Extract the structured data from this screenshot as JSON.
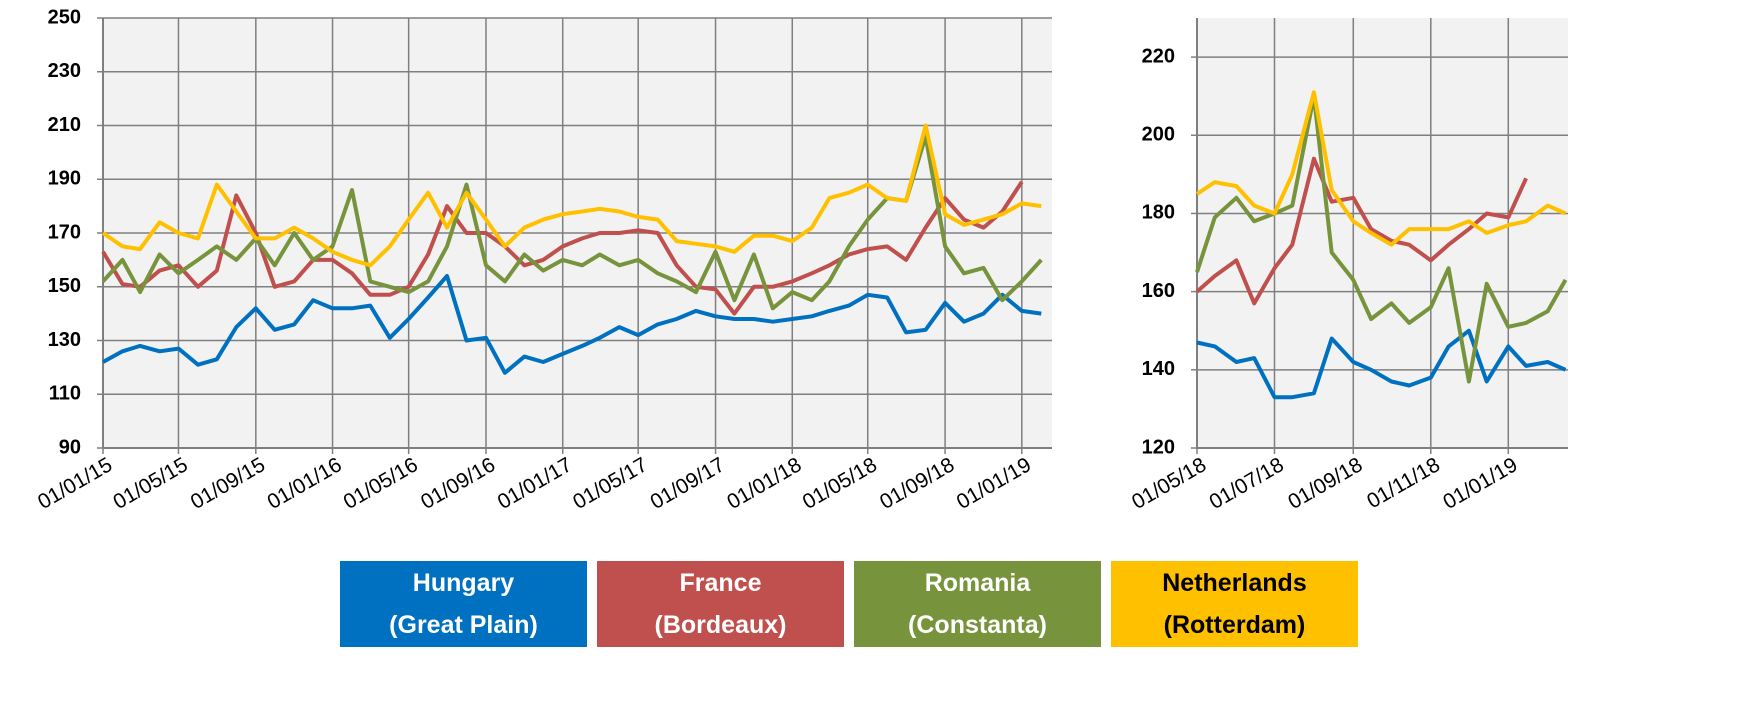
{
  "chart_data": [
    {
      "type": "line",
      "x": [
        "2015-01-01",
        "2015-02-01",
        "2015-03-01",
        "2015-04-01",
        "2015-05-01",
        "2015-06-01",
        "2015-07-01",
        "2015-08-01",
        "2015-09-01",
        "2015-10-01",
        "2015-11-01",
        "2015-12-01",
        "2016-01-01",
        "2016-02-01",
        "2016-03-01",
        "2016-04-01",
        "2016-05-01",
        "2016-06-01",
        "2016-07-01",
        "2016-08-01",
        "2016-09-01",
        "2016-10-01",
        "2016-11-01",
        "2016-12-01",
        "2017-01-01",
        "2017-02-01",
        "2017-03-01",
        "2017-04-01",
        "2017-05-01",
        "2017-06-01",
        "2017-07-01",
        "2017-08-01",
        "2017-09-01",
        "2017-10-01",
        "2017-11-01",
        "2017-12-01",
        "2018-01-01",
        "2018-02-01",
        "2018-03-01",
        "2018-04-01",
        "2018-05-01",
        "2018-06-01",
        "2018-07-01",
        "2018-08-01",
        "2018-09-01",
        "2018-10-01",
        "2018-11-01",
        "2018-12-01",
        "2019-01-01",
        "2019-02-01"
      ],
      "series": [
        {
          "name": "Hungary (Great Plain)",
          "color": "#0070c0",
          "values": [
            122,
            126,
            128,
            126,
            127,
            121,
            123,
            135,
            142,
            134,
            136,
            145,
            142,
            142,
            143,
            131,
            138,
            146,
            154,
            130,
            131,
            118,
            124,
            122,
            125,
            128,
            131,
            135,
            132,
            136,
            138,
            141,
            139,
            138,
            138,
            137,
            138,
            139,
            141,
            143,
            147,
            146,
            133,
            134,
            144,
            137,
            140,
            147,
            141,
            140
          ]
        },
        {
          "name": "France (Bordeaux)",
          "color": "#c0504d",
          "values": [
            163,
            151,
            150,
            156,
            158,
            150,
            156,
            184,
            170,
            150,
            152,
            160,
            160,
            155,
            147,
            147,
            150,
            162,
            180,
            170,
            170,
            165,
            158,
            160,
            165,
            168,
            170,
            170,
            171,
            170,
            158,
            150,
            149,
            140,
            150,
            150,
            152,
            155,
            158,
            162,
            164,
            165,
            160,
            172,
            183,
            175,
            172,
            178,
            189,
            null
          ]
        },
        {
          "name": "Romania (Constanta)",
          "color": "#77933c",
          "values": [
            152,
            160,
            148,
            162,
            155,
            160,
            165,
            160,
            168,
            158,
            170,
            160,
            165,
            186,
            152,
            150,
            148,
            152,
            165,
            188,
            158,
            152,
            162,
            156,
            160,
            158,
            162,
            158,
            160,
            155,
            152,
            148,
            163,
            145,
            162,
            142,
            148,
            145,
            152,
            165,
            175,
            183,
            182,
            206,
            165,
            155,
            157,
            145,
            152,
            160
          ]
        },
        {
          "name": "Netherlands (Rotterdam)",
          "color": "#ffc000",
          "values": [
            170,
            165,
            164,
            174,
            170,
            168,
            188,
            178,
            168,
            168,
            172,
            168,
            163,
            160,
            158,
            165,
            175,
            185,
            172,
            185,
            175,
            165,
            172,
            175,
            177,
            178,
            179,
            178,
            176,
            175,
            167,
            166,
            165,
            163,
            169,
            169,
            167,
            172,
            183,
            185,
            188,
            183,
            182,
            210,
            177,
            173,
            175,
            177,
            181,
            180
          ]
        }
      ],
      "xlim": [
        "2015-01-01",
        "2019-02-18"
      ],
      "xticks": [
        {
          "value": "2015-01-01",
          "label": "01/01/15"
        },
        {
          "value": "2015-05-01",
          "label": "01/05/15"
        },
        {
          "value": "2015-09-01",
          "label": "01/09/15"
        },
        {
          "value": "2016-01-01",
          "label": "01/01/16"
        },
        {
          "value": "2016-05-01",
          "label": "01/05/16"
        },
        {
          "value": "2016-09-01",
          "label": "01/09/16"
        },
        {
          "value": "2017-01-01",
          "label": "01/01/17"
        },
        {
          "value": "2017-05-01",
          "label": "01/05/17"
        },
        {
          "value": "2017-09-01",
          "label": "01/09/17"
        },
        {
          "value": "2018-01-01",
          "label": "01/01/18"
        },
        {
          "value": "2018-05-01",
          "label": "01/05/18"
        },
        {
          "value": "2018-09-01",
          "label": "01/09/18"
        },
        {
          "value": "2019-01-01",
          "label": "01/01/19"
        }
      ],
      "ylim": [
        90,
        250
      ],
      "yticks": [
        90,
        110,
        130,
        150,
        170,
        190,
        210,
        230,
        250
      ],
      "grid": true
    },
    {
      "type": "line",
      "x": [
        "2018-05-01",
        "2018-05-15",
        "2018-06-01",
        "2018-06-15",
        "2018-07-01",
        "2018-07-15",
        "2018-08-01",
        "2018-08-15",
        "2018-09-01",
        "2018-09-15",
        "2018-10-01",
        "2018-10-15",
        "2018-11-01",
        "2018-11-15",
        "2018-12-01",
        "2018-12-15",
        "2019-01-01",
        "2019-01-15",
        "2019-02-01",
        "2019-02-15"
      ],
      "series": [
        {
          "color": "#0070c0",
          "values": [
            147,
            146,
            142,
            143,
            133,
            133,
            134,
            148,
            142,
            140,
            137,
            136,
            138,
            146,
            150,
            137,
            146,
            141,
            142,
            140
          ]
        },
        {
          "color": "#c0504d",
          "values": [
            160,
            164,
            168,
            157,
            166,
            172,
            194,
            183,
            184,
            176,
            173,
            172,
            168,
            172,
            176,
            180,
            179,
            189,
            null,
            null
          ]
        },
        {
          "color": "#77933c",
          "values": [
            165,
            179,
            184,
            178,
            180,
            182,
            210,
            170,
            163,
            153,
            157,
            152,
            156,
            166,
            137,
            162,
            151,
            152,
            155,
            163
          ]
        },
        {
          "color": "#ffc000",
          "values": [
            185,
            188,
            187,
            182,
            180,
            190,
            211,
            186,
            178,
            175,
            172,
            176,
            176,
            176,
            178,
            175,
            177,
            178,
            182,
            180
          ]
        }
      ],
      "xlim": [
        "2018-05-01",
        "2019-02-17"
      ],
      "xticks": [
        {
          "value": "2018-05-01",
          "label": "01/05/18"
        },
        {
          "value": "2018-07-01",
          "label": "01/07/18"
        },
        {
          "value": "2018-09-01",
          "label": "01/09/18"
        },
        {
          "value": "2018-11-01",
          "label": "01/11/18"
        },
        {
          "value": "2019-01-01",
          "label": "01/01/19"
        }
      ],
      "ylim": [
        120,
        230
      ],
      "yticks": [
        120,
        140,
        160,
        180,
        200,
        220
      ],
      "grid": true
    }
  ]
}
